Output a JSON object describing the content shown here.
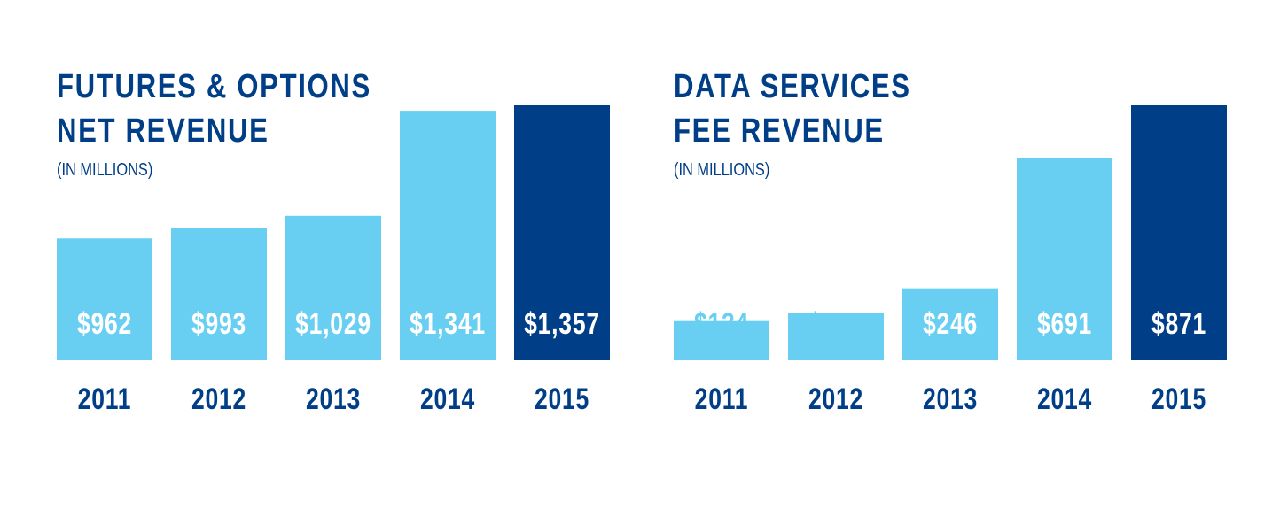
{
  "colors": {
    "bar": "#69cff2",
    "highlight": "#003f87",
    "text": "#003f87",
    "label_inside": "#ffffff"
  },
  "chart_data": [
    {
      "type": "bar",
      "title": [
        "FUTURES & OPTIONS",
        "NET REVENUE"
      ],
      "subtitle": "(IN MILLIONS)",
      "categories": [
        "2011",
        "2012",
        "2013",
        "2014",
        "2015"
      ],
      "values": [
        962,
        993,
        1029,
        1341,
        1357
      ],
      "data_labels": [
        "$962",
        "$993",
        "$1,029",
        "$1,341",
        "$1,357"
      ],
      "highlight_index": 4,
      "ylim": [
        600,
        1357
      ],
      "grid": false
    },
    {
      "type": "bar",
      "title": [
        "DATA SERVICES",
        "FEE REVENUE"
      ],
      "subtitle": "(IN MILLIONS)",
      "categories": [
        "2011",
        "2012",
        "2013",
        "2014",
        "2015"
      ],
      "values": [
        134,
        161,
        246,
        691,
        871
      ],
      "data_labels": [
        "$134",
        "$161",
        "$246",
        "$691",
        "$871"
      ],
      "highlight_index": 4,
      "ylim": [
        0,
        871
      ],
      "grid": false
    }
  ]
}
